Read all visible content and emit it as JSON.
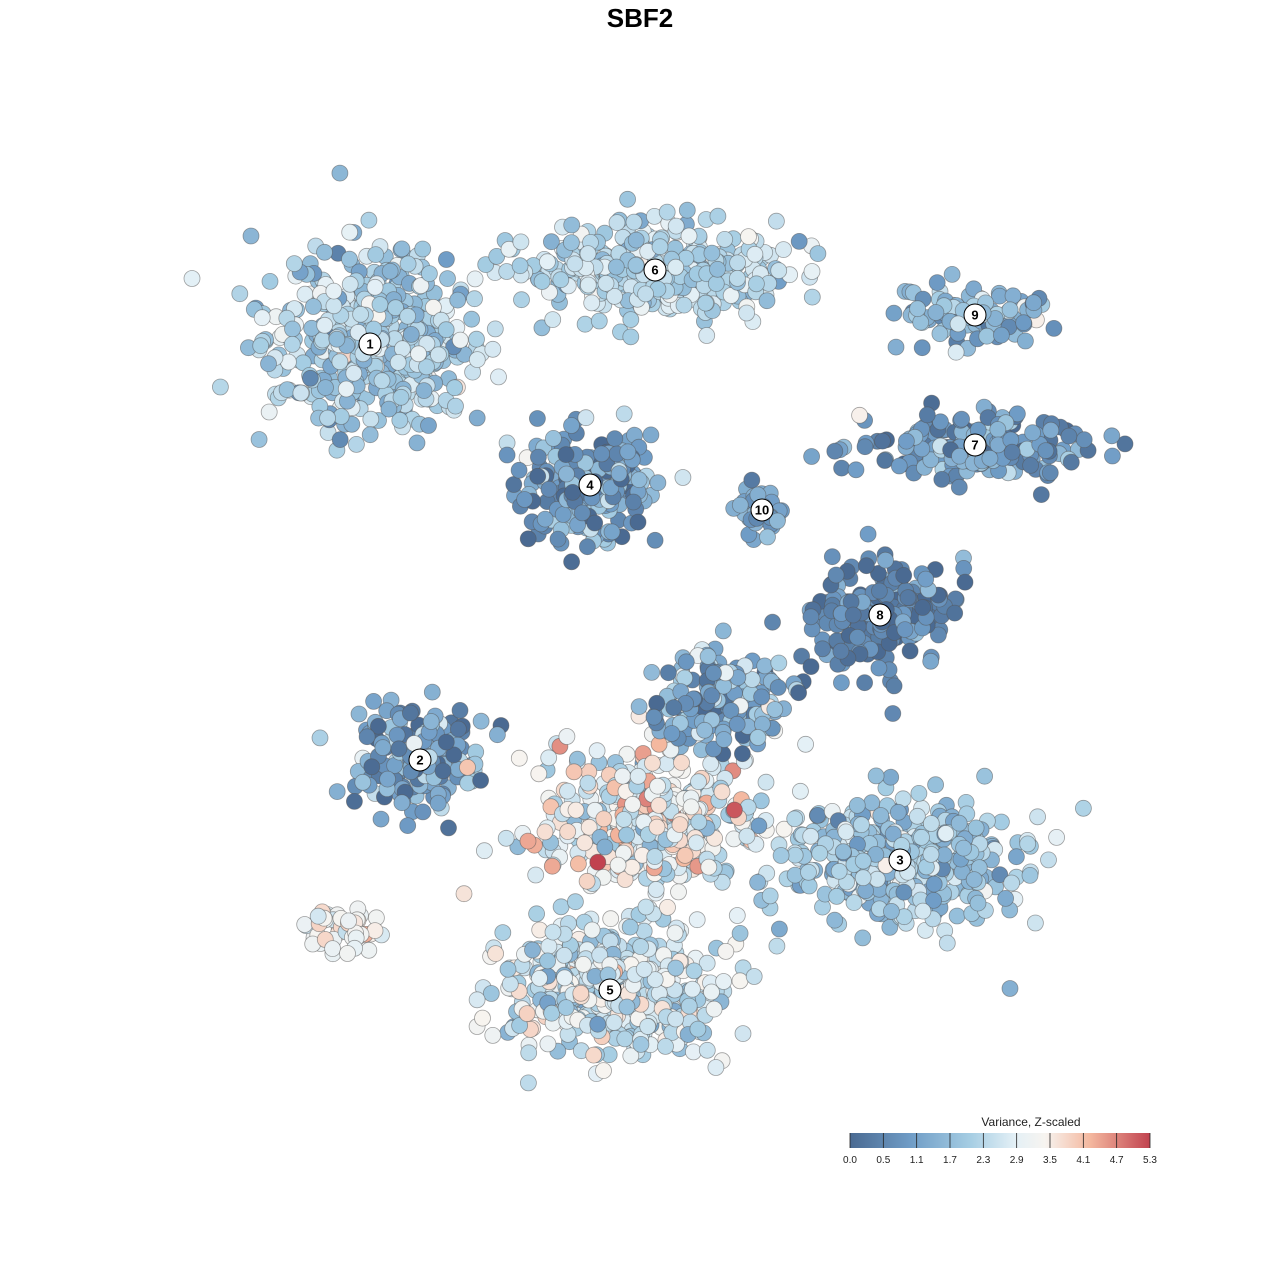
{
  "chart_data": {
    "type": "scatter",
    "title": "SBF2",
    "xlabel": "",
    "ylabel": "",
    "grid": false,
    "legend_placement": "bottom-right",
    "legend": {
      "title": "Variance, Z-scaled",
      "ticks": [
        "0.0",
        "0.5",
        "1.1",
        "1.7",
        "2.3",
        "2.9",
        "3.5",
        "4.1",
        "4.7",
        "5.3"
      ],
      "min": 0.0,
      "max": 5.3
    },
    "colors": {
      "low": "#4a6a92",
      "mid_low": "#a5cde3",
      "mid": "#f7f7f7",
      "mid_high": "#f4b89f",
      "high": "#c1424f"
    },
    "clusters": [
      {
        "label": "1",
        "x": 370,
        "y": 344,
        "spread_x": 105,
        "spread_y": 85,
        "n": 520,
        "mean": 2.1,
        "sd": 0.55
      },
      {
        "label": "6",
        "x": 655,
        "y": 270,
        "spread_x": 120,
        "spread_y": 45,
        "n": 430,
        "mean": 2.3,
        "sd": 0.45
      },
      {
        "label": "4",
        "x": 590,
        "y": 485,
        "spread_x": 65,
        "spread_y": 55,
        "n": 230,
        "mean": 1.0,
        "sd": 0.9
      },
      {
        "label": "9",
        "x": 975,
        "y": 315,
        "spread_x": 75,
        "spread_y": 30,
        "n": 110,
        "mean": 1.6,
        "sd": 0.7
      },
      {
        "label": "7",
        "x": 975,
        "y": 445,
        "spread_x": 110,
        "spread_y": 30,
        "n": 190,
        "mean": 1.0,
        "sd": 0.7
      },
      {
        "label": "10",
        "x": 762,
        "y": 510,
        "spread_x": 25,
        "spread_y": 28,
        "n": 40,
        "mean": 1.2,
        "sd": 0.5
      },
      {
        "label": "8",
        "x": 880,
        "y": 615,
        "spread_x": 70,
        "spread_y": 55,
        "n": 200,
        "mean": 0.6,
        "sd": 0.55
      },
      {
        "label": "2",
        "x": 420,
        "y": 760,
        "spread_x": 70,
        "spread_y": 50,
        "n": 170,
        "mean": 1.1,
        "sd": 0.8
      },
      {
        "label": "3",
        "x": 900,
        "y": 860,
        "spread_x": 115,
        "spread_y": 60,
        "n": 430,
        "mean": 2.0,
        "sd": 0.55
      },
      {
        "label": "5",
        "x": 610,
        "y": 990,
        "spread_x": 110,
        "spread_y": 65,
        "n": 480,
        "mean": 2.6,
        "sd": 0.6
      },
      {
        "label": "",
        "x": 650,
        "y": 820,
        "spread_x": 110,
        "spread_y": 70,
        "n": 420,
        "mean": 3.0,
        "sd": 0.75
      },
      {
        "label": "",
        "x": 720,
        "y": 700,
        "spread_x": 70,
        "spread_y": 45,
        "n": 170,
        "mean": 1.4,
        "sd": 0.9
      },
      {
        "label": "",
        "x": 345,
        "y": 930,
        "spread_x": 45,
        "spread_y": 22,
        "n": 45,
        "mean": 3.3,
        "sd": 0.4
      }
    ],
    "x_range": [
      200,
      1130
    ],
    "y_range": [
      185,
      1095
    ]
  }
}
